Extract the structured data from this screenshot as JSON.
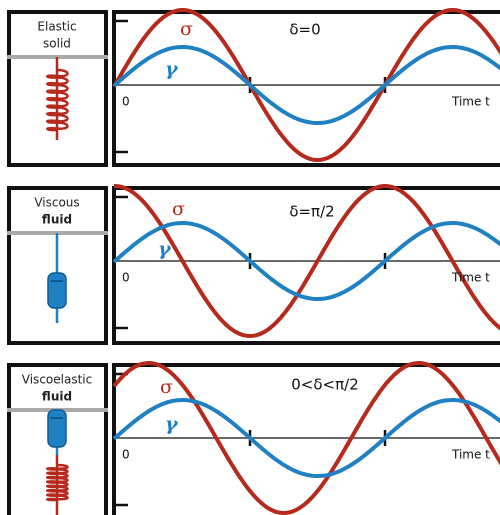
{
  "panels": [
    {
      "label": [
        "Elastic",
        "solid"
      ],
      "sigma": "σ",
      "gamma": "γ",
      "delta": "δ=0",
      "origin": "0",
      "time_axis": "Time t"
    },
    {
      "label": [
        "Viscous",
        "fluid"
      ],
      "sigma": "σ",
      "gamma": "γ",
      "delta": "δ=π/2",
      "origin": "0",
      "time_axis": "Time t"
    },
    {
      "label": [
        "Viscoelastic",
        "fluid"
      ],
      "sigma": "σ",
      "gamma": "γ",
      "delta": "0<δ<π/2",
      "origin": "0",
      "time_axis": "Time t"
    }
  ]
}
